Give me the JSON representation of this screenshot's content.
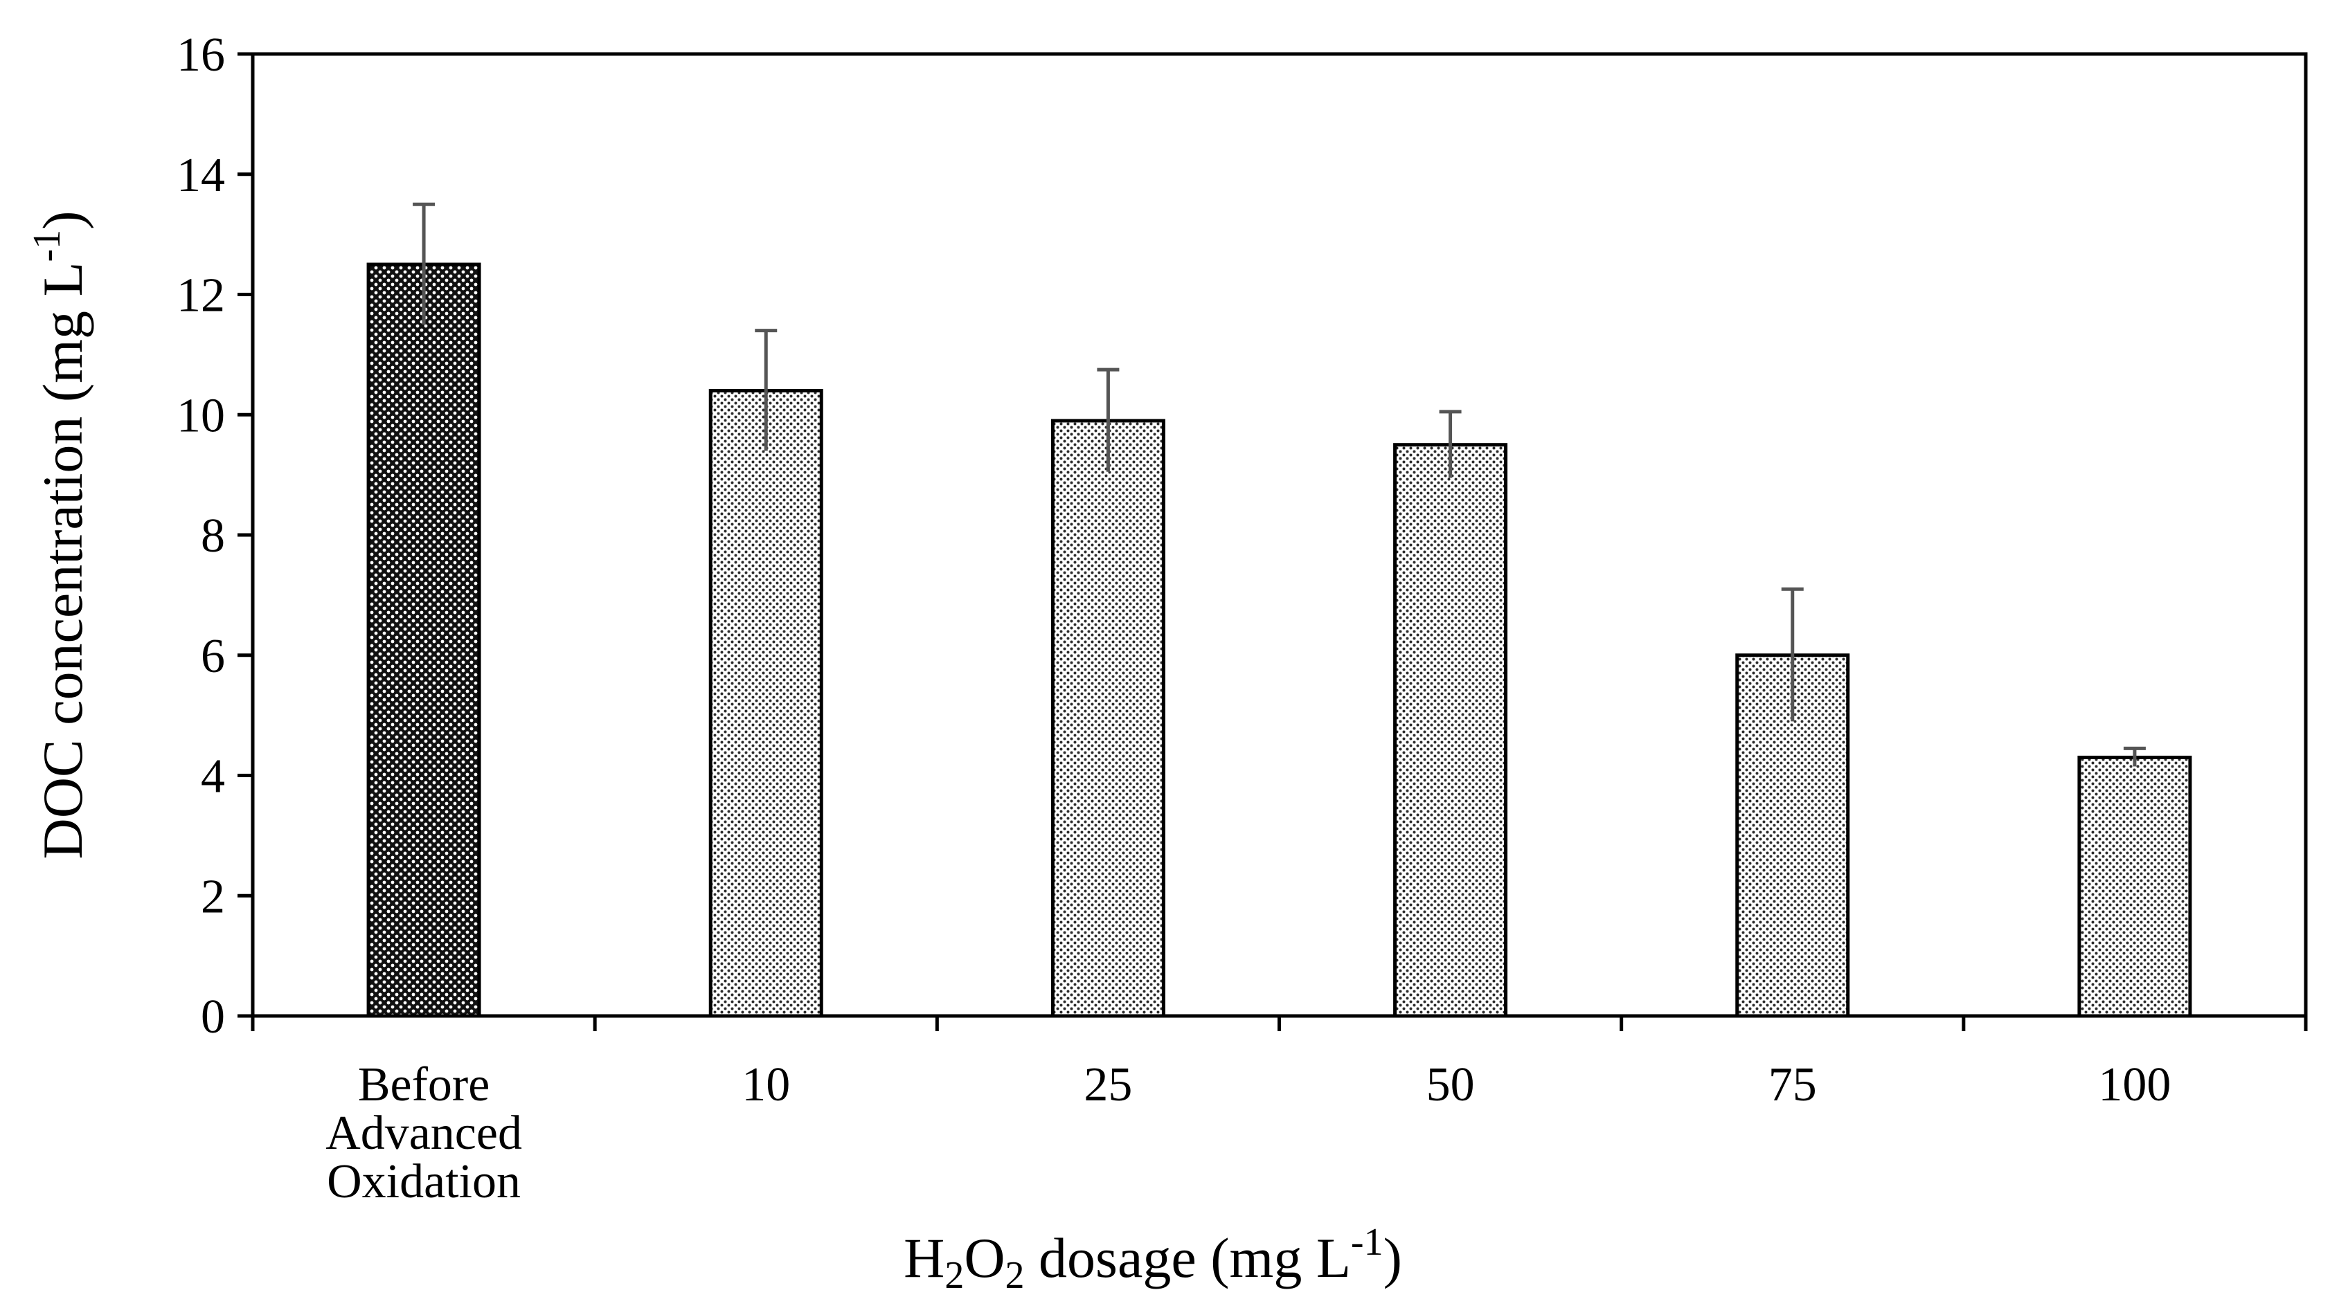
{
  "chart_data": {
    "type": "bar",
    "categories": [
      [
        "Before",
        "Advanced",
        "Oxidation"
      ],
      [
        "10"
      ],
      [
        "25"
      ],
      [
        "50"
      ],
      [
        "75"
      ],
      [
        "100"
      ]
    ],
    "values": [
      12.5,
      10.4,
      9.9,
      9.5,
      6.0,
      4.3
    ],
    "errors": [
      1.0,
      1.0,
      0.85,
      0.55,
      1.1,
      0.15
    ],
    "ylim": [
      0,
      16
    ],
    "yticks": [
      "0",
      "2",
      "4",
      "6",
      "8",
      "10",
      "12",
      "14",
      "16"
    ],
    "xlabel": {
      "prefix": "H",
      "sub1": "2",
      "mid": "O",
      "sub2": "2",
      "rest": " dosage (mg L",
      "sup": "-1",
      "close": ")"
    },
    "ylabel": {
      "main": "DOC  concentration (mg L",
      "sup": "-1",
      "close": ")"
    },
    "grid": false,
    "legend": "none",
    "colors": {
      "first_bar_fill": "#111111",
      "first_bar_dot": "#ffffff",
      "bar_fill": "#ffffff",
      "bar_dot": "#2b2b2b",
      "error_bar": "#555555",
      "axis": "#000000"
    }
  }
}
